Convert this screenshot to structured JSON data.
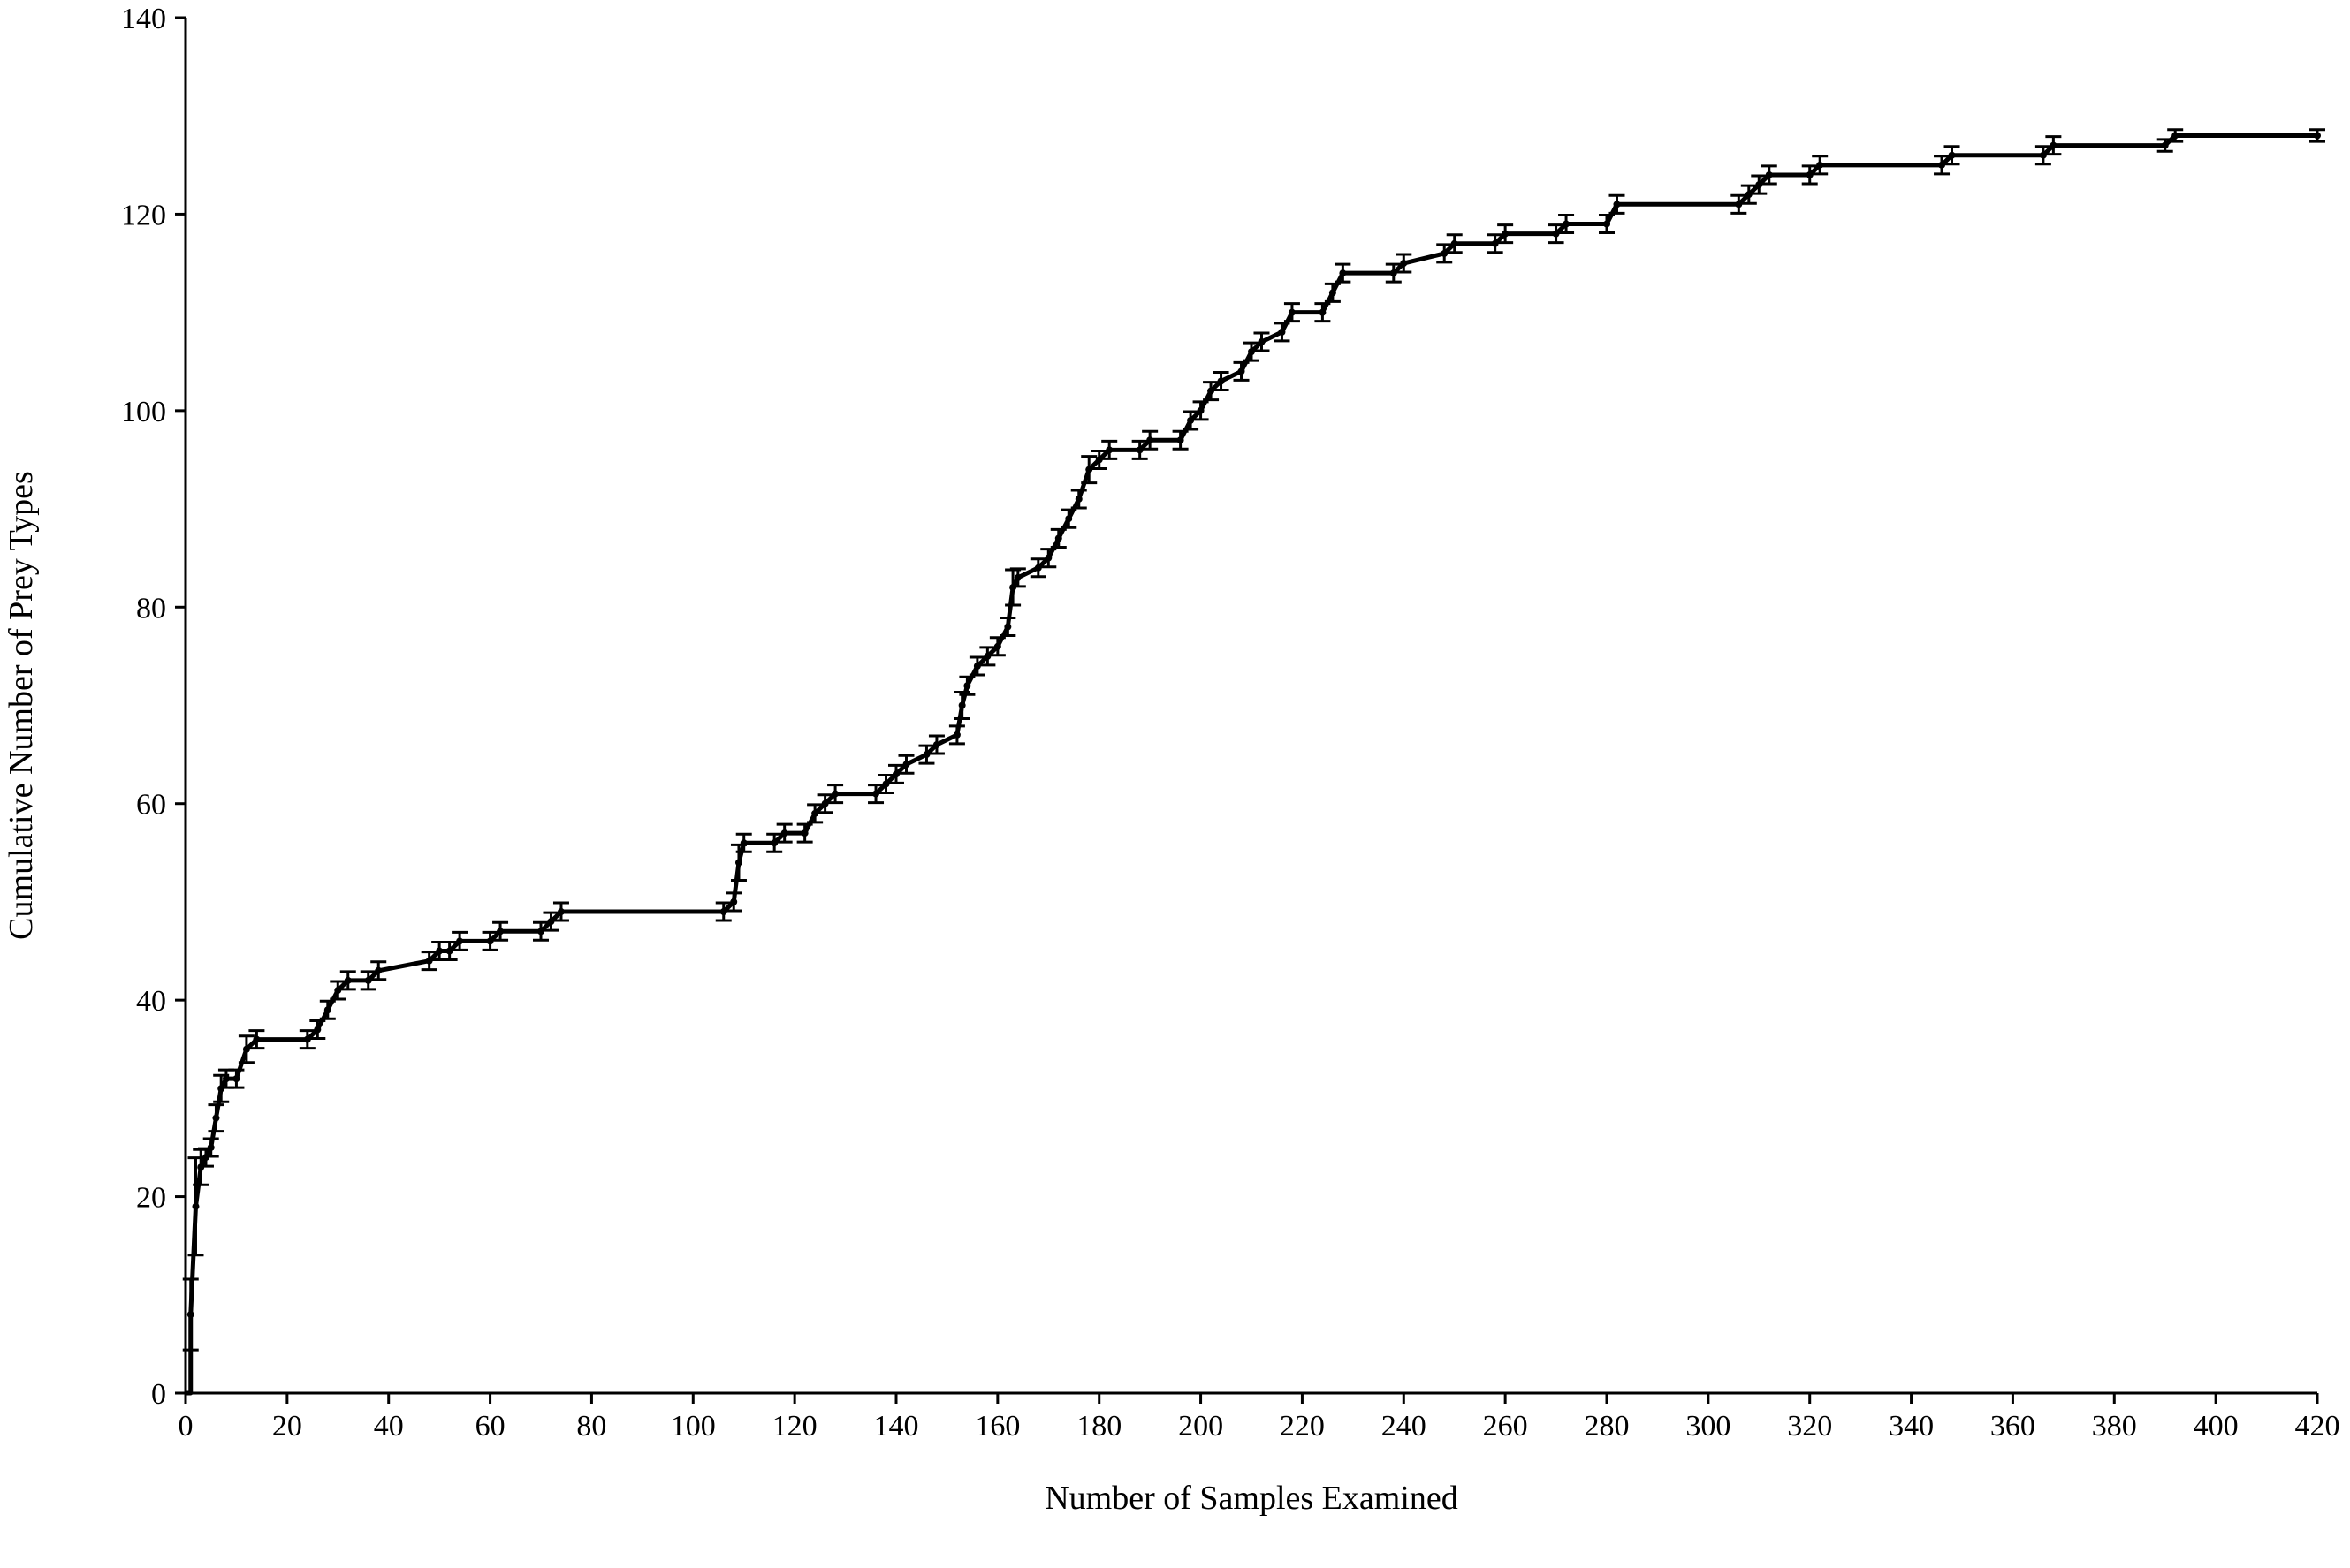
{
  "chart_data": {
    "type": "line",
    "title": "",
    "xlabel": "Number of Samples Examined",
    "ylabel": "Cumulative Number of Prey Types",
    "xlim": [
      0,
      420
    ],
    "ylim": [
      0,
      140
    ],
    "x_ticks": [
      0,
      20,
      40,
      60,
      80,
      100,
      120,
      140,
      160,
      180,
      200,
      220,
      240,
      260,
      280,
      300,
      320,
      340,
      360,
      380,
      400,
      420
    ],
    "y_ticks": [
      0,
      20,
      40,
      60,
      80,
      100,
      120,
      140
    ],
    "grid": false,
    "legend": "none",
    "line_color": "#000000",
    "error_bars": true,
    "series": [
      {
        "values": [
          [
            1,
            8
          ],
          [
            2,
            19
          ],
          [
            3,
            23
          ],
          [
            4,
            24
          ],
          [
            5,
            25
          ],
          [
            6,
            28
          ],
          [
            7,
            31
          ],
          [
            8,
            32
          ],
          [
            10,
            32
          ],
          [
            12,
            35
          ],
          [
            14,
            36
          ],
          [
            24,
            36
          ],
          [
            26,
            37
          ],
          [
            28,
            39
          ],
          [
            30,
            41
          ],
          [
            32,
            42
          ],
          [
            36,
            42
          ],
          [
            38,
            43
          ],
          [
            48,
            44
          ],
          [
            50,
            45
          ],
          [
            52,
            45
          ],
          [
            54,
            46
          ],
          [
            60,
            46
          ],
          [
            62,
            47
          ],
          [
            70,
            47
          ],
          [
            72,
            48
          ],
          [
            74,
            49
          ],
          [
            106,
            49
          ],
          [
            108,
            50
          ],
          [
            109,
            54
          ],
          [
            110,
            56
          ],
          [
            116,
            56
          ],
          [
            118,
            57
          ],
          [
            122,
            57
          ],
          [
            124,
            59
          ],
          [
            126,
            60
          ],
          [
            128,
            61
          ],
          [
            136,
            61
          ],
          [
            138,
            62
          ],
          [
            140,
            63
          ],
          [
            142,
            64
          ],
          [
            146,
            65
          ],
          [
            148,
            66
          ],
          [
            152,
            67
          ],
          [
            153,
            70
          ],
          [
            154,
            72
          ],
          [
            156,
            74
          ],
          [
            158,
            75
          ],
          [
            160,
            76
          ],
          [
            162,
            78
          ],
          [
            163,
            82
          ],
          [
            164,
            83
          ],
          [
            168,
            84
          ],
          [
            170,
            85
          ],
          [
            172,
            87
          ],
          [
            174,
            89
          ],
          [
            176,
            91
          ],
          [
            178,
            94
          ],
          [
            180,
            95
          ],
          [
            182,
            96
          ],
          [
            188,
            96
          ],
          [
            190,
            97
          ],
          [
            196,
            97
          ],
          [
            198,
            99
          ],
          [
            200,
            100
          ],
          [
            202,
            102
          ],
          [
            204,
            103
          ],
          [
            208,
            104
          ],
          [
            210,
            106
          ],
          [
            212,
            107
          ],
          [
            216,
            108
          ],
          [
            218,
            110
          ],
          [
            224,
            110
          ],
          [
            226,
            112
          ],
          [
            228,
            114
          ],
          [
            238,
            114
          ],
          [
            240,
            115
          ],
          [
            248,
            116
          ],
          [
            250,
            117
          ],
          [
            258,
            117
          ],
          [
            260,
            118
          ],
          [
            270,
            118
          ],
          [
            272,
            119
          ],
          [
            280,
            119
          ],
          [
            282,
            121
          ],
          [
            306,
            121
          ],
          [
            308,
            122
          ],
          [
            310,
            123
          ],
          [
            312,
            124
          ],
          [
            320,
            124
          ],
          [
            322,
            125
          ],
          [
            346,
            125
          ],
          [
            348,
            126
          ],
          [
            366,
            126
          ],
          [
            368,
            127
          ],
          [
            390,
            127
          ],
          [
            392,
            128
          ],
          [
            420,
            128
          ]
        ]
      }
    ]
  }
}
